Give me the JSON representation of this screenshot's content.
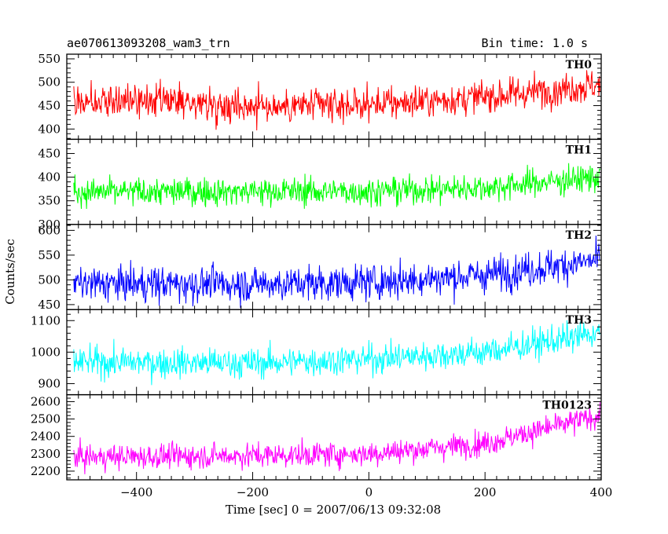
{
  "header": {
    "title": "ae070613093208_wam3_trn",
    "bin_time": "Bin time: 1.0 s"
  },
  "chart_data": {
    "type": "line",
    "xlabel": "Time [sec] 0 = 2007/06/13 09:32:08",
    "ylabel": "Counts/sec",
    "xlim": [
      -520,
      400
    ],
    "xticks": [
      -400,
      -200,
      0,
      200,
      400
    ],
    "x_tick_labels": [
      "−400",
      "−200",
      "0",
      "200",
      "400"
    ],
    "x_start": -508,
    "x_end": 398,
    "bin": 1.0,
    "panels": [
      {
        "name": "TH0",
        "color": "#ff0000",
        "ylim": [
          378,
          560
        ],
        "yticks": [
          400,
          450,
          500,
          550
        ],
        "trend": [
          {
            "x": -508,
            "y": 460
          },
          {
            "x": -300,
            "y": 455
          },
          {
            "x": -150,
            "y": 448
          },
          {
            "x": 0,
            "y": 452
          },
          {
            "x": 200,
            "y": 468
          },
          {
            "x": 398,
            "y": 495
          }
        ],
        "noise": 30
      },
      {
        "name": "TH1",
        "color": "#00ff00",
        "ylim": [
          300,
          480
        ],
        "yticks": [
          300,
          350,
          400,
          450
        ],
        "trend": [
          {
            "x": -508,
            "y": 368
          },
          {
            "x": -200,
            "y": 370
          },
          {
            "x": 0,
            "y": 370
          },
          {
            "x": 200,
            "y": 378
          },
          {
            "x": 398,
            "y": 400
          }
        ],
        "noise": 25
      },
      {
        "name": "TH2",
        "color": "#0000ff",
        "ylim": [
          440,
          612
        ],
        "yticks": [
          450,
          500,
          550,
          600
        ],
        "trend": [
          {
            "x": -508,
            "y": 492
          },
          {
            "x": -200,
            "y": 492
          },
          {
            "x": 0,
            "y": 495
          },
          {
            "x": 200,
            "y": 510
          },
          {
            "x": 398,
            "y": 540
          }
        ],
        "noise": 30
      },
      {
        "name": "TH3",
        "color": "#00ffff",
        "ylim": [
          865,
          1135
        ],
        "yticks": [
          900,
          1000,
          1100
        ],
        "trend": [
          {
            "x": -508,
            "y": 968
          },
          {
            "x": -200,
            "y": 965
          },
          {
            "x": 0,
            "y": 978
          },
          {
            "x": 200,
            "y": 1000
          },
          {
            "x": 398,
            "y": 1060
          }
        ],
        "noise": 40
      },
      {
        "name": "TH0123",
        "color": "#ff00ff",
        "ylim": [
          2150,
          2640
        ],
        "yticks": [
          2200,
          2300,
          2400,
          2500,
          2600
        ],
        "trend": [
          {
            "x": -508,
            "y": 2280
          },
          {
            "x": -200,
            "y": 2290
          },
          {
            "x": 0,
            "y": 2300
          },
          {
            "x": 200,
            "y": 2360
          },
          {
            "x": 398,
            "y": 2520
          }
        ],
        "noise": 60
      }
    ]
  }
}
